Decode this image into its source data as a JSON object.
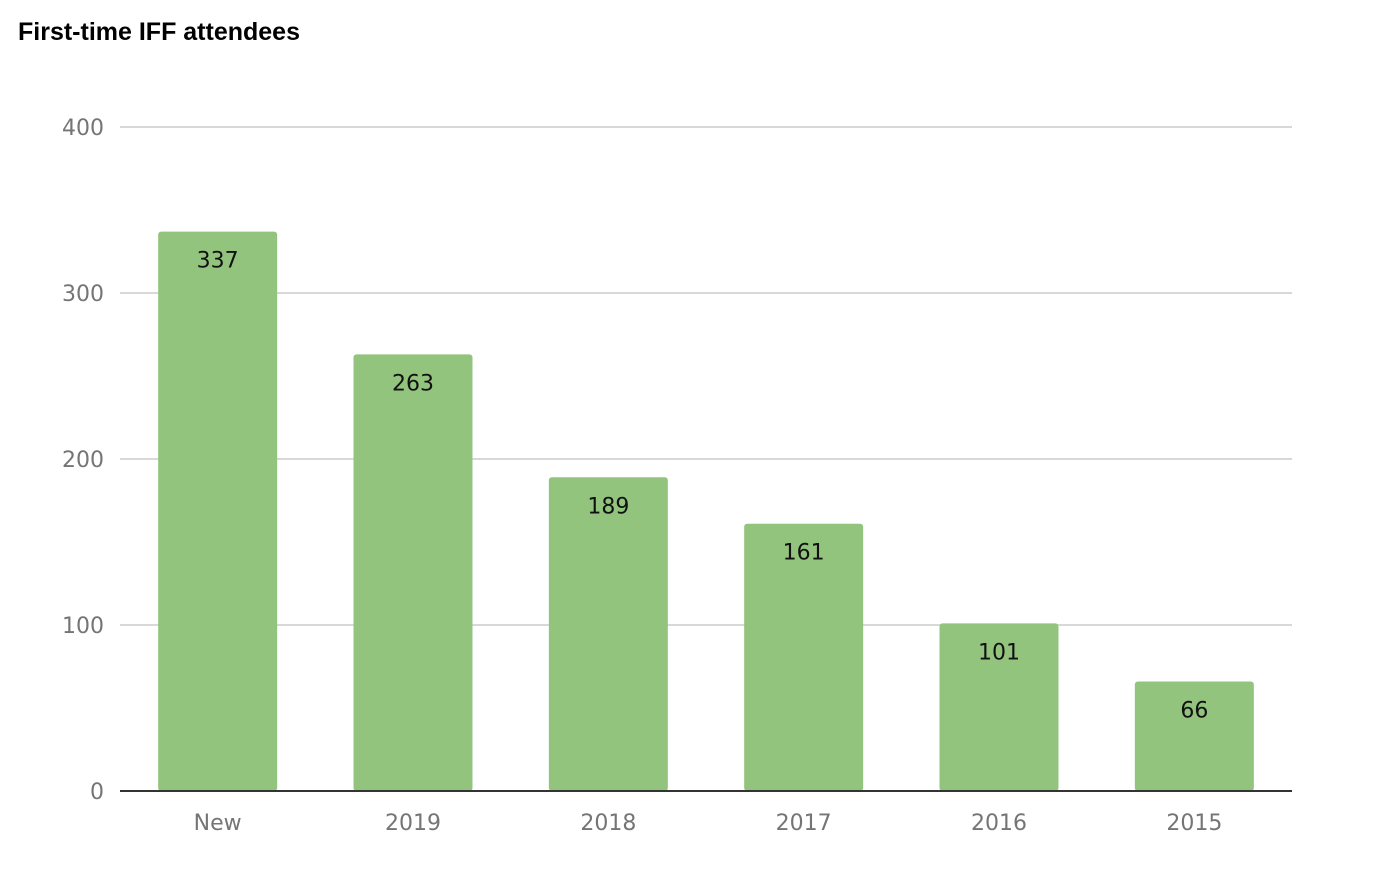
{
  "chart_data": {
    "type": "bar",
    "title": "First-time IFF attendees",
    "xlabel": "",
    "ylabel": "",
    "categories": [
      "New",
      "2019",
      "2018",
      "2017",
      "2016",
      "2015"
    ],
    "values": [
      337,
      263,
      189,
      161,
      101,
      66
    ],
    "data_labels": [
      "337",
      "263",
      "189",
      "161",
      "101",
      "66"
    ],
    "y_ticks": [
      "0",
      "100",
      "200",
      "300",
      "400"
    ],
    "ylim": [
      0,
      400
    ],
    "grid": true,
    "legend": "none",
    "bar_color": "#93c47d"
  }
}
